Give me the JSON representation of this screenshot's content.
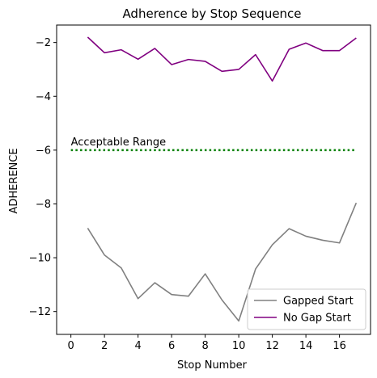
{
  "chart_data": {
    "type": "line",
    "title": "Adherence by Stop Sequence",
    "xlabel": "Stop Number",
    "ylabel": "ADHERENCE",
    "xlim": [
      -0.85,
      17.85
    ],
    "ylim": [
      -12.85,
      -1.35
    ],
    "xticks": [
      0,
      2,
      4,
      6,
      8,
      10,
      12,
      14,
      16
    ],
    "xtick_labels": [
      "0",
      "2",
      "4",
      "6",
      "8",
      "10",
      "12",
      "14",
      "16"
    ],
    "yticks": [
      -12,
      -10,
      -8,
      -6,
      -4,
      -2
    ],
    "ytick_labels": [
      "−12",
      "−10",
      "−8",
      "−6",
      "−4",
      "−2"
    ],
    "x": [
      1,
      2,
      3,
      4,
      5,
      6,
      7,
      8,
      9,
      10,
      11,
      12,
      13,
      14,
      15,
      16,
      17
    ],
    "series": [
      {
        "name": "Gapped Start",
        "color": "#808080",
        "values": [
          -8.9,
          -9.9,
          -10.38,
          -11.52,
          -10.93,
          -11.37,
          -11.43,
          -10.6,
          -11.57,
          -12.35,
          -10.42,
          -9.52,
          -8.92,
          -9.2,
          -9.35,
          -9.45,
          -7.96
        ]
      },
      {
        "name": "No Gap Start",
        "color": "#800080",
        "values": [
          -1.8,
          -2.38,
          -2.27,
          -2.62,
          -2.22,
          -2.82,
          -2.63,
          -2.7,
          -3.07,
          -3.0,
          -2.45,
          -3.43,
          -2.25,
          -2.02,
          -2.3,
          -2.3,
          -1.83
        ]
      }
    ],
    "reference_line": {
      "y": -6.0,
      "x_range": [
        0,
        17
      ],
      "label": "Acceptable Range",
      "color": "#008000",
      "style": "dotted"
    },
    "legend": {
      "position": "lower-right"
    },
    "grid": false
  }
}
